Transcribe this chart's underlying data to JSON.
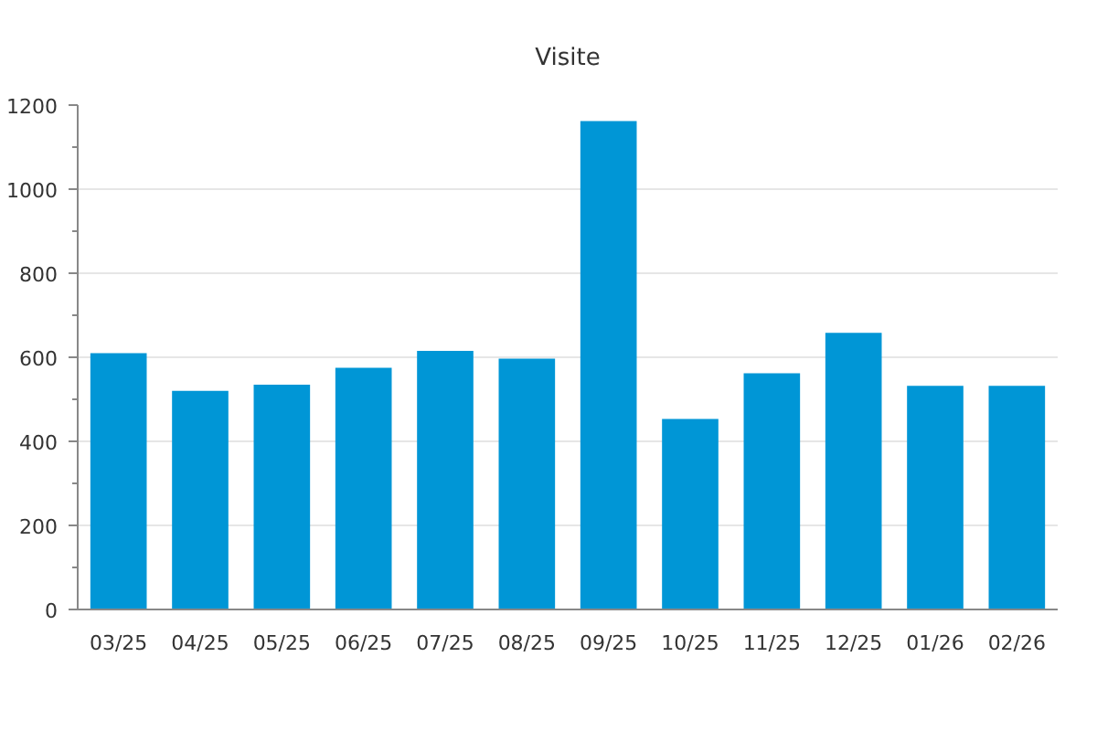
{
  "chart_data": {
    "type": "bar",
    "title": "Visite",
    "categories": [
      "03/25",
      "04/25",
      "05/25",
      "06/25",
      "07/25",
      "08/25",
      "09/25",
      "10/25",
      "11/25",
      "12/25",
      "01/26",
      "02/26"
    ],
    "values": [
      610,
      520,
      535,
      575,
      615,
      597,
      1162,
      453,
      562,
      658,
      532,
      532
    ],
    "color": "#0096d6",
    "ylim": [
      0,
      1200
    ],
    "yticks": [
      0,
      {
        "value": 100,
        "label": null
      },
      200,
      {
        "value": 300,
        "label": null
      },
      400,
      {
        "value": 500,
        "label": null
      },
      600,
      {
        "value": 700,
        "label": null
      },
      800,
      {
        "value": 900,
        "label": null
      },
      1000,
      {
        "value": 1100,
        "label": null
      },
      1200
    ],
    "grid": "y"
  }
}
